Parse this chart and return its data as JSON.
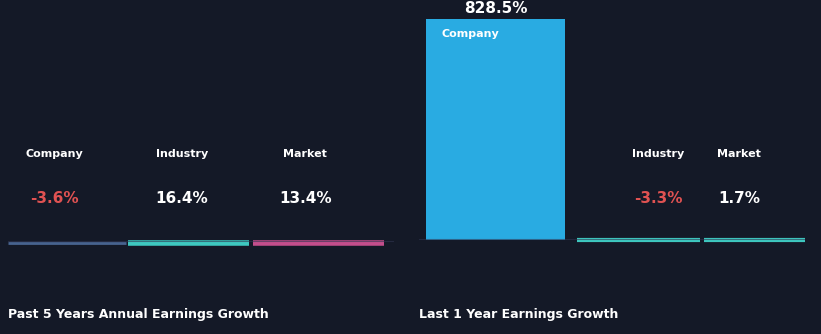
{
  "bg_color": "#141927",
  "left_title": "Past 5 Years Annual Earnings Growth",
  "right_title": "Last 1 Year Earnings Growth",
  "left": {
    "categories": [
      "Company",
      "Industry",
      "Market"
    ],
    "labels": [
      "-3.6%",
      "16.4%",
      "13.4%"
    ],
    "value_colors": [
      "#e05252",
      "#ffffff",
      "#ffffff"
    ],
    "cat_color": "#ffffff",
    "company_bar_color": "#5577aa",
    "industry_bar_color": "#3ec8c0",
    "market_bar_color": "#c44e8c"
  },
  "right": {
    "categories": [
      "Company",
      "Industry",
      "Market"
    ],
    "labels": [
      "828.5%",
      "-3.3%",
      "1.7%"
    ],
    "value_colors": [
      "#ffffff",
      "#e05252",
      "#ffffff"
    ],
    "cat_color": "#ffffff",
    "company_bar_color": "#29abe2",
    "company_label_inside": "Company",
    "industry_bar_color": "#3ec8c0",
    "market_bar_color": "#3ec8c0"
  },
  "divider_color": "#2a2f42",
  "title_fontsize": 9,
  "cat_fontsize": 8,
  "val_fontsize": 11
}
